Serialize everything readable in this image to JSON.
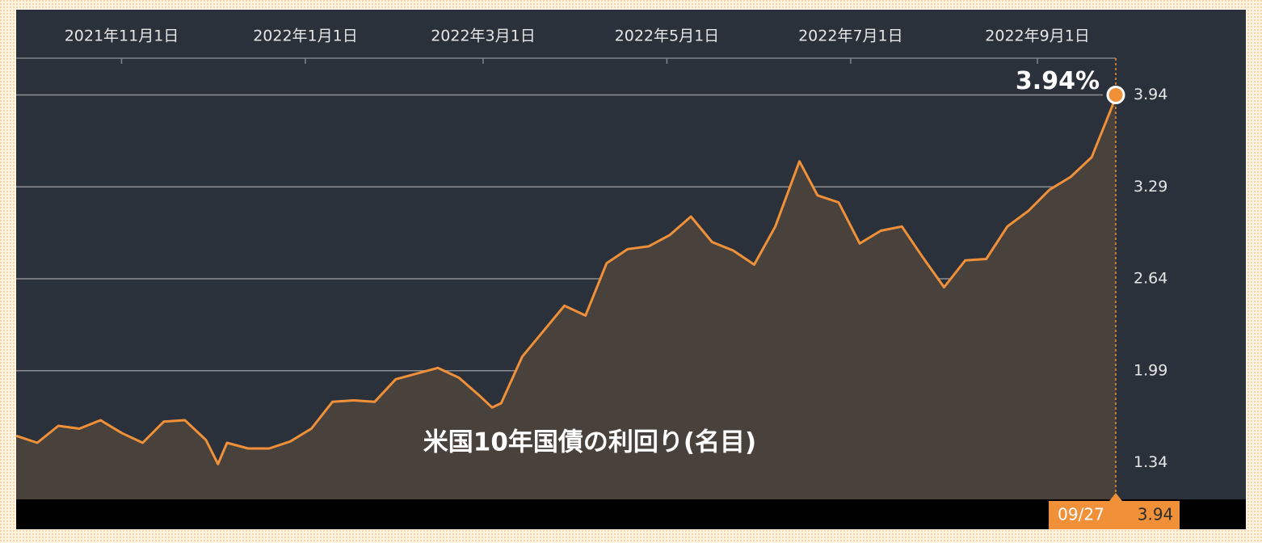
{
  "chart_data": {
    "type": "area",
    "title": "米国10年国債の利回り(名目)",
    "annotation": "3.94%",
    "tooltip": {
      "date": "09/27",
      "value": 3.94
    },
    "color": "#f0913a",
    "fill": "#48413c",
    "x": [
      "2021-09-27",
      "2021-10-04",
      "2021-10-11",
      "2021-10-18",
      "2021-10-25",
      "2021-11-01",
      "2021-11-08",
      "2021-11-15",
      "2021-11-22",
      "2021-11-29",
      "2021-12-03",
      "2021-12-06",
      "2021-12-13",
      "2021-12-20",
      "2021-12-27",
      "2022-01-03",
      "2022-01-10",
      "2022-01-17",
      "2022-01-24",
      "2022-01-31",
      "2022-02-07",
      "2022-02-14",
      "2022-02-21",
      "2022-02-28",
      "2022-03-04",
      "2022-03-07",
      "2022-03-14",
      "2022-03-21",
      "2022-03-28",
      "2022-04-04",
      "2022-04-11",
      "2022-04-18",
      "2022-04-25",
      "2022-05-02",
      "2022-05-09",
      "2022-05-16",
      "2022-05-23",
      "2022-05-30",
      "2022-06-06",
      "2022-06-14",
      "2022-06-20",
      "2022-06-27",
      "2022-07-04",
      "2022-07-11",
      "2022-07-18",
      "2022-07-25",
      "2022-08-01",
      "2022-08-08",
      "2022-08-15",
      "2022-08-22",
      "2022-08-29",
      "2022-09-05",
      "2022-09-12",
      "2022-09-19",
      "2022-09-26",
      "2022-09-27"
    ],
    "values": [
      1.53,
      1.48,
      1.6,
      1.58,
      1.64,
      1.55,
      1.48,
      1.63,
      1.64,
      1.5,
      1.33,
      1.48,
      1.44,
      1.44,
      1.49,
      1.58,
      1.77,
      1.78,
      1.77,
      1.93,
      1.97,
      2.01,
      1.94,
      1.81,
      1.73,
      1.76,
      2.09,
      2.27,
      2.45,
      2.38,
      2.75,
      2.85,
      2.87,
      2.95,
      3.08,
      2.9,
      2.84,
      2.74,
      3.01,
      3.47,
      3.23,
      3.18,
      2.89,
      2.98,
      3.01,
      2.79,
      2.58,
      2.77,
      2.78,
      3.01,
      3.12,
      3.27,
      3.36,
      3.5,
      3.87,
      3.94
    ],
    "xlim": [
      "2021-09-27",
      "2022-09-27"
    ],
    "xticks": [
      {
        "value": "2021-11-01",
        "label": "2021年11月1日"
      },
      {
        "value": "2022-01-01",
        "label": "2022年1月1日"
      },
      {
        "value": "2022-03-01",
        "label": "2022年3月1日"
      },
      {
        "value": "2022-05-01",
        "label": "2022年5月1日"
      },
      {
        "value": "2022-07-01",
        "label": "2022年7月1日"
      },
      {
        "value": "2022-09-01",
        "label": "2022年9月1日"
      }
    ],
    "ylim": [
      1.08,
      4.2
    ],
    "yticks": [
      1.34,
      1.99,
      2.64,
      3.29,
      3.94
    ],
    "grid": true
  }
}
